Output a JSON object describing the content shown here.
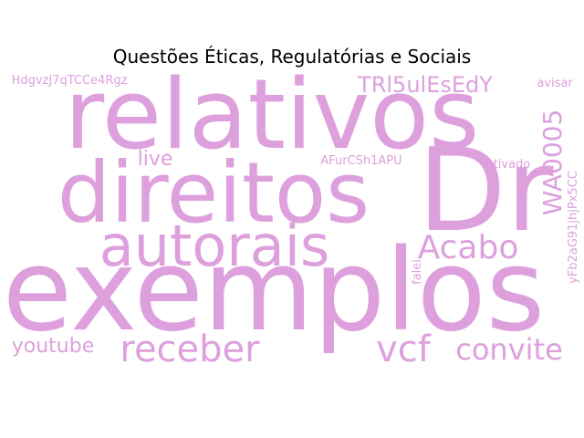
{
  "title": "Questões Éticas, Regulatórias e Sociais",
  "word_color": "#dda0dd",
  "words": [
    "relativos",
    "direitos",
    "Dr",
    "exemplos",
    "autorais",
    "Acabo",
    "receber",
    "vcf",
    "convite",
    "youtube",
    "TRl5ulEsEdY",
    "WA0005",
    "live",
    "AFurCSh1APU",
    "ativado",
    "HdgvzJ7qTCCe4Rgz",
    "avisar",
    "falei",
    "yFb2aG91jhjPx5CC"
  ]
}
